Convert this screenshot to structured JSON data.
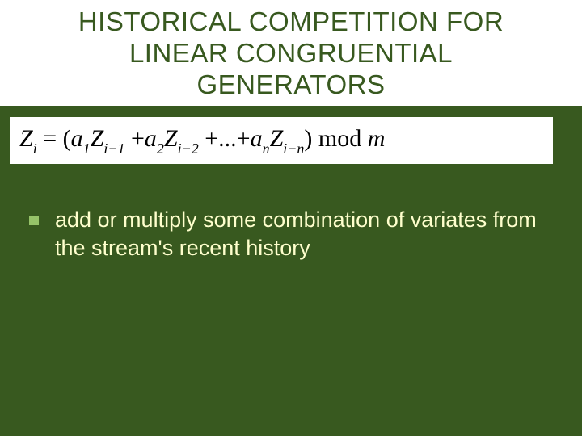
{
  "slide": {
    "background_color": "#38591f",
    "header_background": "#ffffff",
    "title": {
      "text": "HISTORICAL COMPETITION FOR LINEAR CONGRUENTIAL GENERATORS",
      "color": "#38591f",
      "fontsize": 33
    },
    "formula": {
      "background": "#ffffff",
      "color": "#000000",
      "fontsize": 30,
      "lhs_var": "Z",
      "lhs_sub": "i",
      "terms": [
        {
          "coef_var": "a",
          "coef_sub": "1",
          "z_sub": "i−1"
        },
        {
          "coef_var": "a",
          "coef_sub": "2",
          "z_sub": "i−2"
        },
        {
          "coef_var": "a",
          "coef_sub": "n",
          "z_sub": "i−n"
        }
      ],
      "ellipsis": "...",
      "mod_word": "mod",
      "mod_var": "m"
    },
    "bullet": {
      "marker_color": "#96c369",
      "text_color": "#ffffcd",
      "fontsize": 27,
      "text": "add or multiply some combination of variates from the stream's recent history"
    }
  }
}
